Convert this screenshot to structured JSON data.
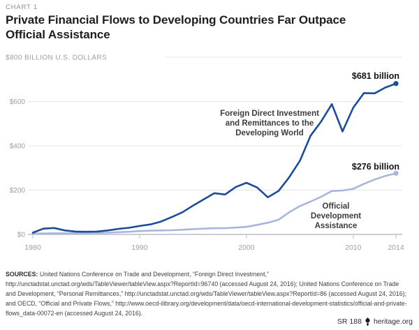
{
  "header": {
    "kicker": "CHART 1",
    "title": "Private Financial Flows to Developing Countries Far Outpace Official Assistance"
  },
  "chart_data": {
    "type": "line",
    "title": "Private Financial Flows to Developing Countries Far Outpace Official Assistance",
    "ylabel": "$800 BILLION U.S. DOLLARS",
    "xlabel": "",
    "grid": true,
    "xlim": [
      1980,
      2014
    ],
    "ylim": [
      0,
      800
    ],
    "x_ticks": [
      1980,
      1990,
      2000,
      2010,
      2014
    ],
    "y_ticks": [
      {
        "value": 0,
        "label": "$0"
      },
      {
        "value": 200,
        "label": "$200"
      },
      {
        "value": 400,
        "label": "$400"
      },
      {
        "value": 600,
        "label": "$600"
      },
      {
        "value": 800,
        "label": "$800 BILLION U.S. DOLLARS"
      }
    ],
    "x": [
      1980,
      1981,
      1982,
      1983,
      1984,
      1985,
      1986,
      1987,
      1988,
      1989,
      1990,
      1991,
      1992,
      1993,
      1994,
      1995,
      1996,
      1997,
      1998,
      1999,
      2000,
      2001,
      2002,
      2003,
      2004,
      2005,
      2006,
      2007,
      2008,
      2009,
      2010,
      2011,
      2012,
      2013,
      2014
    ],
    "series": [
      {
        "name": "Foreign Direct Investment and Remittances to the Developing World",
        "label_lines": [
          "Foreign Direct Investment",
          "and Remittances to the",
          "Developing World"
        ],
        "end_label": "$681 billion",
        "color": "#1b4c9c",
        "values": [
          8,
          26,
          29,
          18,
          13,
          12,
          13,
          18,
          25,
          30,
          38,
          45,
          58,
          78,
          100,
          130,
          158,
          186,
          180,
          214,
          233,
          212,
          168,
          196,
          258,
          332,
          445,
          510,
          588,
          465,
          572,
          638,
          637,
          663,
          681
        ]
      },
      {
        "name": "Official Development Assistance",
        "label_lines": [
          "Official",
          "Development",
          "Assistance"
        ],
        "end_label": "$276 billion",
        "color": "#a7b7da",
        "values": [
          4,
          4,
          5,
          5,
          5,
          6,
          7,
          8,
          10,
          12,
          15,
          17,
          18,
          19,
          21,
          24,
          26,
          28,
          28,
          31,
          34,
          43,
          53,
          66,
          100,
          128,
          148,
          170,
          196,
          198,
          206,
          228,
          248,
          264,
          276
        ]
      }
    ],
    "colors": {
      "grid": "#e3e5e8",
      "axis": "#b9bec5",
      "tick_label": "#9aa0a6",
      "annotation_text": "#3c3c3c",
      "value_label": "#141414"
    },
    "legend_position": "inline-annotations"
  },
  "sources": {
    "label": "SOURCES:",
    "text": "United Nations Conference on Trade and Development, “Foreign Direct Investment,” http://unctadstat.unctad.org/wds/TableViewer/tableView.aspx?ReportId=96740 (accessed August 24, 2016); United Nations Conference on Trade and Development, “Personal Remittances,” http://unctadstat.unctad.org/wds/TableViewer/tableView.aspx?ReportId=86 (accessed August 24, 2016); and OECD, “Official and Private Flows,” http://www.oecd-ilibrary.org/development/data/oecd-international-development-statistics/official-and-private-flows_data-00072-en (accessed August 24, 2016)."
  },
  "footer": {
    "report": "SR 188",
    "site": "heritage.org"
  }
}
